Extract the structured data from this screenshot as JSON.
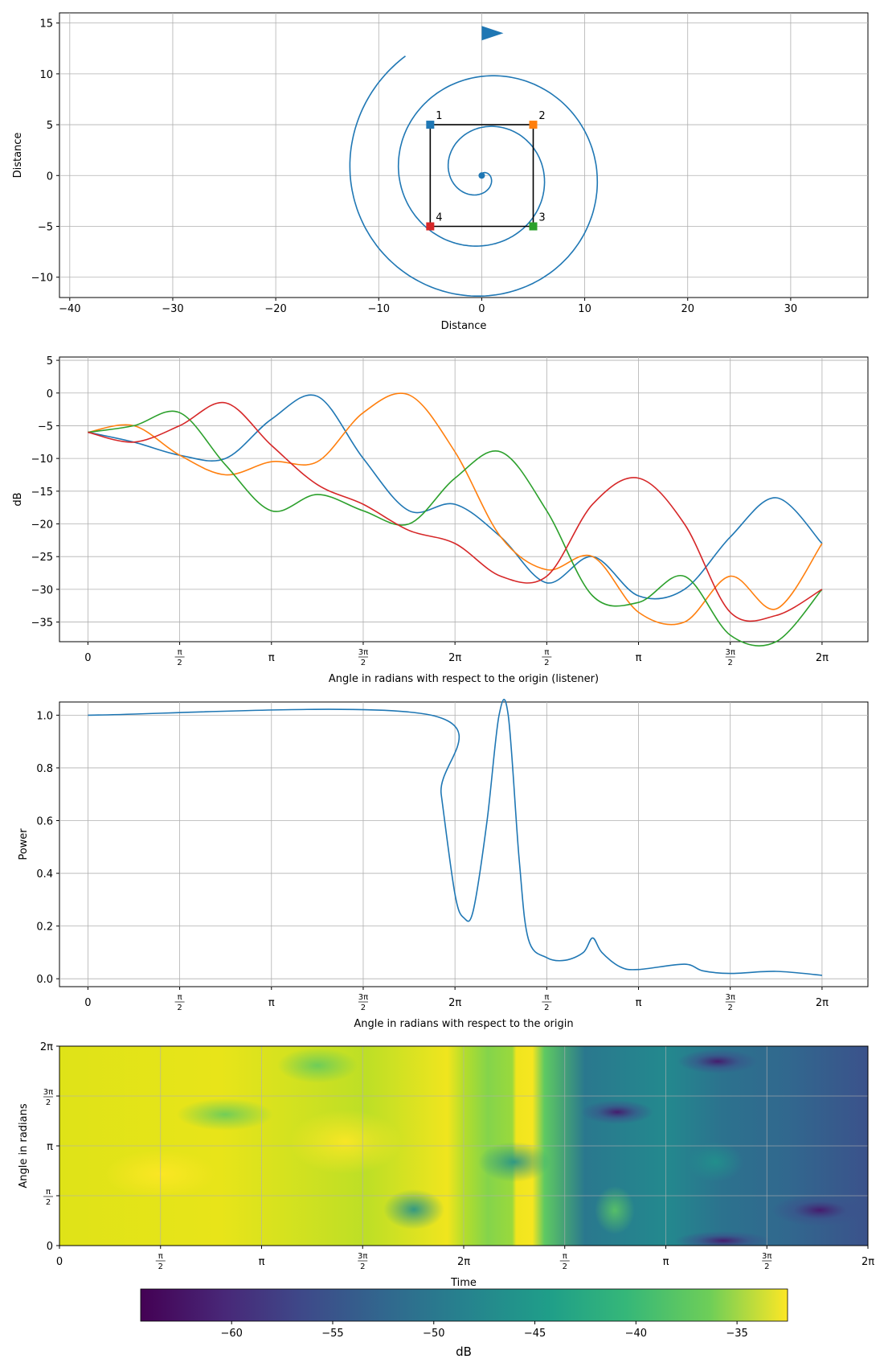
{
  "chart_data": [
    {
      "type": "line",
      "subtype": "2d-trajectory",
      "xlabel": "Distance",
      "ylabel": "Distance",
      "xlim": [
        -41,
        37.5
      ],
      "ylim": [
        -12,
        16
      ],
      "xticks": [
        -40,
        -30,
        -20,
        -10,
        0,
        10,
        20,
        30
      ],
      "yticks": [
        -10,
        -5,
        0,
        5,
        10,
        15
      ],
      "grid": true,
      "spiral": {
        "color": "#1f77b4",
        "start": [
          0,
          0
        ],
        "end": [
          1,
          14
        ],
        "description_points": [
          [
            0,
            0
          ],
          [
            2,
            -0.5
          ],
          [
            0,
            -3.5
          ],
          [
            -5,
            1
          ],
          [
            1,
            7
          ],
          [
            9,
            -1
          ],
          [
            -1,
            -10.5
          ],
          [
            -12,
            1
          ],
          [
            0,
            14
          ],
          [
            1,
            14
          ]
        ]
      },
      "speakers": [
        {
          "label": "1",
          "x": -5,
          "y": 5,
          "color": "#1f77b4"
        },
        {
          "label": "2",
          "x": 5,
          "y": 5,
          "color": "#ff7f0e"
        },
        {
          "label": "3",
          "x": 5,
          "y": -5,
          "color": "#2ca02c"
        },
        {
          "label": "4",
          "x": -5,
          "y": -5,
          "color": "#d62728"
        }
      ],
      "square_color": "#000000"
    },
    {
      "type": "line",
      "xlabel": "Angle in radians with respect to the origin (listener)",
      "ylabel": "dB",
      "ylim": [
        -38,
        5.5
      ],
      "yticks": [
        5,
        0,
        -5,
        -10,
        -15,
        -20,
        -25,
        -30,
        -35
      ],
      "xtick_labels": [
        "0",
        "π/2",
        "π",
        "3π/2",
        "2π",
        "π/2",
        "π",
        "3π/2",
        "2π"
      ],
      "grid": true,
      "x": [
        0,
        0.5,
        1,
        1.5,
        2,
        2.5,
        3,
        3.5,
        4,
        4.5,
        5,
        5.5,
        6,
        6.5,
        7,
        7.5,
        8
      ],
      "series": [
        {
          "color": "#1f77b4",
          "values": [
            -6,
            -7.5,
            -9.5,
            -10,
            -4,
            -0.5,
            -10,
            -18,
            -17,
            -22,
            -29,
            -25,
            -31,
            -30,
            -22,
            -16,
            -23
          ]
        },
        {
          "color": "#ff7f0e",
          "values": [
            -6,
            -5,
            -9.5,
            -12.5,
            -10.5,
            -10.5,
            -3,
            -0.3,
            -9,
            -22,
            -27,
            -25,
            -33.5,
            -35,
            -28,
            -33,
            -23
          ]
        },
        {
          "color": "#2ca02c",
          "values": [
            -6,
            -5,
            -3,
            -11,
            -18,
            -15.5,
            -18,
            -20,
            -13,
            -9,
            -18,
            -31,
            -32,
            -28,
            -37,
            -38,
            -30
          ]
        },
        {
          "color": "#d62728",
          "values": [
            -6,
            -7.5,
            -5,
            -1.5,
            -8,
            -14,
            -17,
            -21,
            -23,
            -28,
            -28,
            -17,
            -13,
            -20,
            -33.5,
            -34,
            -30
          ]
        }
      ]
    },
    {
      "type": "line",
      "xlabel": "Angle in radians with respect to the origin",
      "ylabel": "Power",
      "ylim": [
        -0.03,
        1.05
      ],
      "yticks": [
        0.0,
        0.2,
        0.4,
        0.6,
        0.8,
        1.0
      ],
      "xtick_labels": [
        "0",
        "π/2",
        "π",
        "3π/2",
        "2π",
        "π/2",
        "π",
        "3π/2",
        "2π"
      ],
      "grid": true,
      "x": [
        0,
        3.74,
        3.85,
        4.0,
        4.1,
        4.2,
        4.35,
        4.48,
        4.58,
        4.7,
        4.8,
        5.0,
        5.2,
        5.4,
        5.5,
        5.6,
        5.8,
        6.0,
        6.5,
        6.7,
        7.0,
        7.5,
        8.0
      ],
      "series": [
        {
          "color": "#1f77b4",
          "values": [
            1.0,
            1.0,
            0.7,
            0.32,
            0.23,
            0.26,
            0.6,
            1.0,
            1.0,
            0.45,
            0.15,
            0.08,
            0.07,
            0.1,
            0.155,
            0.1,
            0.045,
            0.035,
            0.055,
            0.03,
            0.02,
            0.028,
            0.013
          ]
        }
      ]
    },
    {
      "type": "heatmap",
      "xlabel": "Time",
      "ylabel": "Angle in radians",
      "colorbar_label": "dB",
      "colorbar_ticks": [
        -60,
        -55,
        -50,
        -45,
        -40,
        -35
      ],
      "colorbar_range": [
        -64.5,
        -32.5
      ],
      "colormap": "viridis",
      "xtick_labels": [
        "0",
        "π/2",
        "π",
        "3π/2",
        "2π",
        "π/2",
        "π",
        "3π/2",
        "2π"
      ],
      "ytick_labels": [
        "0",
        "π/2",
        "π",
        "3π/2",
        "2π"
      ],
      "grid": true
    }
  ]
}
